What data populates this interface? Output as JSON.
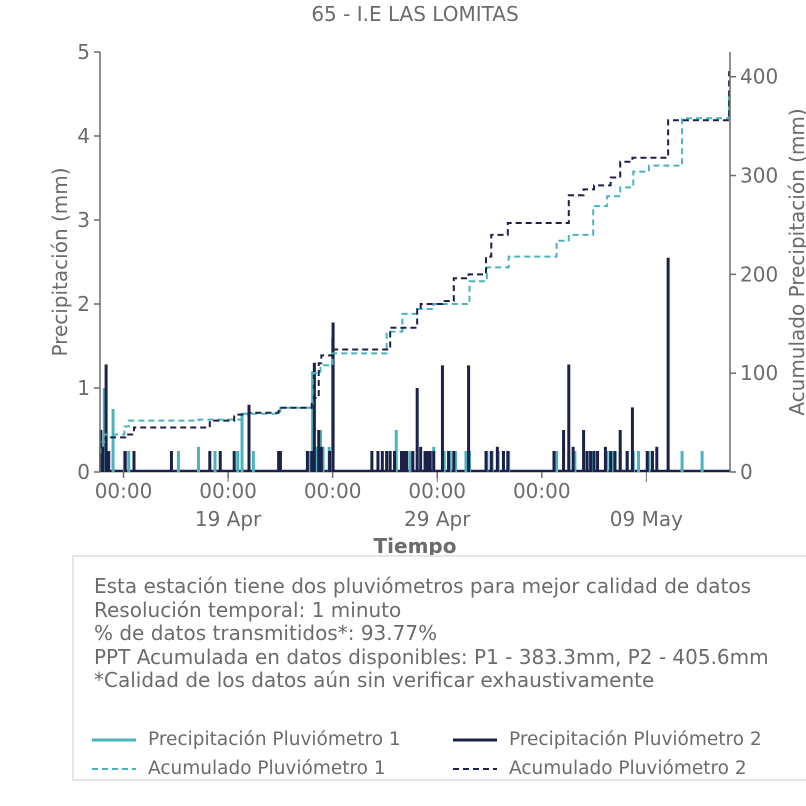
{
  "chart_data": {
    "type": "bar+line",
    "title": "65 - I.E LAS LOMITAS",
    "xlabel": "Tiempo",
    "ylabel": "Precipitación (mm)",
    "y2label": "Acumulado Precipitación (mm)",
    "ylim": [
      0,
      5
    ],
    "y2lim": [
      0,
      425
    ],
    "xlim": [
      "2024-04-12T21:00",
      "2024-05-13T00:00"
    ],
    "yticks": [
      "0",
      "1",
      "2",
      "3",
      "4",
      "5"
    ],
    "y2ticks": [
      "0",
      "100",
      "200",
      "300",
      "400"
    ],
    "xticks_major": [
      "00:00",
      "00:00",
      "00:00",
      "00:00",
      "00:00"
    ],
    "xticks_minor": [
      "19 Apr",
      "29 Apr",
      "09 May"
    ],
    "grid": false,
    "series": [
      {
        "name": "Precipitación Pluviómetro 1",
        "kind": "bar",
        "axis": "left",
        "x": [
          "2024-04-12T21:30",
          "2024-04-12T23:10",
          "2024-04-13T02:00",
          "2024-04-13T12:00",
          "2024-04-14T01:00",
          "2024-04-14T06:00",
          "2024-04-16T15:00",
          "2024-04-17T14:00",
          "2024-04-18T09:00",
          "2024-04-19T11:00",
          "2024-04-19T16:00",
          "2024-04-20T05:00",
          "2024-04-21T12:00",
          "2024-04-22T21:00",
          "2024-04-23T01:00",
          "2024-04-23T06:00",
          "2024-04-23T10:00",
          "2024-04-23T13:00",
          "2024-04-23T20:00",
          "2024-04-24T00:00",
          "2024-04-26T14:00",
          "2024-04-27T01:00",
          "2024-04-27T08:00",
          "2024-04-27T11:00",
          "2024-04-27T17:00",
          "2024-04-28T01:00",
          "2024-04-28T11:00",
          "2024-04-28T20:00",
          "2024-04-29T08:00",
          "2024-04-29T15:00",
          "2024-04-29T21:00",
          "2024-04-30T09:00",
          "2024-04-30T13:00",
          "2024-05-01T09:00",
          "2024-05-01T15:00",
          "2024-05-01T22:00",
          "2024-05-02T04:00",
          "2024-05-02T10:00",
          "2024-05-04T17:00",
          "2024-05-05T01:00",
          "2024-05-05T07:00",
          "2024-05-05T14:00",
          "2024-05-06T00:00",
          "2024-05-06T04:00",
          "2024-05-06T11:00",
          "2024-05-07T03:00",
          "2024-05-07T10:00",
          "2024-05-07T18:00",
          "2024-05-08T02:00",
          "2024-05-08T09:00",
          "2024-05-08T15:00",
          "2024-05-09T03:00",
          "2024-05-10T17:00",
          "2024-05-11T16:00"
        ],
        "values": [
          0.3,
          0.2,
          1.0,
          0.75,
          0.25,
          0.25,
          0.25,
          0.3,
          0.25,
          0.25,
          0.7,
          0.25,
          0.25,
          0.25,
          1.2,
          0.3,
          0.5,
          0.3,
          0.3,
          1.6,
          0.25,
          0.5,
          0.25,
          0.25,
          0.25,
          0.3,
          0.25,
          0.3,
          0.25,
          0.25,
          0.25,
          0.25,
          0.25,
          0.25,
          0.25,
          0.25,
          0.25,
          0.25,
          0.25,
          0.3,
          0.25,
          0.25,
          0.25,
          0.25,
          0.25,
          0.25,
          0.25,
          0.25,
          0.25,
          0.25,
          0.25,
          0.25,
          0.25,
          0.25
        ]
      },
      {
        "name": "Precipitación Pluviómetro 2",
        "kind": "bar",
        "axis": "left",
        "x": [
          "2024-04-12T22:00",
          "2024-04-13T00:00",
          "2024-04-13T04:00",
          "2024-04-13T07:00",
          "2024-04-14T02:00",
          "2024-04-14T12:00",
          "2024-04-16T07:00",
          "2024-04-18T03:00",
          "2024-04-18T15:00",
          "2024-04-19T07:00",
          "2024-04-20T00:00",
          "2024-04-21T10:00",
          "2024-04-21T12:00",
          "2024-04-22T19:00",
          "2024-04-23T00:00",
          "2024-04-23T03:00",
          "2024-04-23T08:00",
          "2024-04-23T11:00",
          "2024-04-23T20:30",
          "2024-04-24T00:30",
          "2024-04-25T21:00",
          "2024-04-26T04:00",
          "2024-04-26T09:00",
          "2024-04-26T14:00",
          "2024-04-26T18:00",
          "2024-04-26T23:00",
          "2024-04-27T07:00",
          "2024-04-27T10:00",
          "2024-04-27T13:00",
          "2024-04-27T20:00",
          "2024-04-28T01:00",
          "2024-04-28T05:00",
          "2024-04-28T10:00",
          "2024-04-28T13:00",
          "2024-04-28T16:00",
          "2024-04-28T20:00",
          "2024-04-29T06:00",
          "2024-04-29T13:00",
          "2024-04-29T19:00",
          "2024-04-30T12:00",
          "2024-05-01T08:00",
          "2024-05-01T14:00",
          "2024-05-01T21:00",
          "2024-05-02T04:00",
          "2024-05-02T09:00",
          "2024-05-04T14:00",
          "2024-05-05T01:00",
          "2024-05-05T07:00",
          "2024-05-05T12:00",
          "2024-05-06T00:00",
          "2024-05-06T04:00",
          "2024-05-06T08:00",
          "2024-05-06T12:00",
          "2024-05-06T16:00",
          "2024-05-07T01:00",
          "2024-05-07T07:00",
          "2024-05-07T12:00",
          "2024-05-07T18:00",
          "2024-05-08T02:00",
          "2024-05-08T08:00",
          "2024-05-09T01:00",
          "2024-05-09T07:00",
          "2024-05-09T12:00",
          "2024-05-10T01:00"
        ],
        "values": [
          0.5,
          0.3,
          1.28,
          0.25,
          0.25,
          0.25,
          0.25,
          0.25,
          0.25,
          0.25,
          0.8,
          0.25,
          0.25,
          0.25,
          0.25,
          1.3,
          0.5,
          0.3,
          0.25,
          1.78,
          0.25,
          0.25,
          0.25,
          0.25,
          0.25,
          0.25,
          0.25,
          0.25,
          0.25,
          0.25,
          1.0,
          0.3,
          0.25,
          0.25,
          0.25,
          0.25,
          1.27,
          0.25,
          0.25,
          1.27,
          0.25,
          0.25,
          0.3,
          0.25,
          0.25,
          0.25,
          0.5,
          1.28,
          0.3,
          0.5,
          0.25,
          0.25,
          0.25,
          0.25,
          0.3,
          0.25,
          0.25,
          0.5,
          0.25,
          0.77,
          0.25,
          0.25,
          0.3,
          2.55
        ]
      },
      {
        "name": "Acumulado Pluviómetro 1",
        "kind": "line",
        "axis": "right",
        "x": [
          "2024-04-12T21:00",
          "2024-04-12T21:30",
          "2024-04-13T02:00",
          "2024-04-13T12:00",
          "2024-04-14T01:00",
          "2024-04-14T06:00",
          "2024-04-16T15:00",
          "2024-04-17T14:00",
          "2024-04-19T11:00",
          "2024-04-19T16:00",
          "2024-04-21T12:00",
          "2024-04-22T21:00",
          "2024-04-23T01:00",
          "2024-04-23T10:00",
          "2024-04-24T00:00",
          "2024-04-26T14:00",
          "2024-04-27T01:00",
          "2024-04-27T08:00",
          "2024-04-28T01:00",
          "2024-04-28T20:00",
          "2024-04-30T13:00",
          "2024-05-01T09:00",
          "2024-05-02T10:00",
          "2024-05-04T17:00",
          "2024-05-05T07:00",
          "2024-05-06T00:00",
          "2024-05-06T11:00",
          "2024-05-07T03:00",
          "2024-05-07T18:00",
          "2024-05-08T09:00",
          "2024-05-09T03:00",
          "2024-05-10T17:00",
          "2024-05-12T23:00"
        ],
        "values": [
          20,
          30,
          38,
          38,
          46,
          52,
          52,
          53,
          53,
          59,
          65,
          65,
          100,
          108,
          120,
          142,
          142,
          160,
          165,
          170,
          193,
          207,
          218,
          234,
          240,
          240,
          269,
          279,
          288,
          304,
          310,
          358,
          383.3
        ]
      },
      {
        "name": "Acumulado Pluviómetro 2",
        "kind": "line",
        "axis": "right",
        "x": [
          "2024-04-12T21:00",
          "2024-04-12T22:00",
          "2024-04-13T04:00",
          "2024-04-13T07:00",
          "2024-04-14T02:00",
          "2024-04-14T12:00",
          "2024-04-18T03:00",
          "2024-04-19T07:00",
          "2024-04-20T00:00",
          "2024-04-21T10:00",
          "2024-04-23T00:00",
          "2024-04-23T03:00",
          "2024-04-23T08:00",
          "2024-04-23T11:00",
          "2024-04-24T00:30",
          "2024-04-26T18:00",
          "2024-04-28T01:00",
          "2024-04-28T05:00",
          "2024-04-29T06:00",
          "2024-04-29T19:00",
          "2024-04-30T12:00",
          "2024-05-01T08:00",
          "2024-05-01T14:00",
          "2024-05-02T09:00",
          "2024-05-04T14:00",
          "2024-05-05T07:00",
          "2024-05-06T00:00",
          "2024-05-06T12:00",
          "2024-05-07T07:00",
          "2024-05-07T18:00",
          "2024-05-08T08:00",
          "2024-05-10T01:00",
          "2024-05-12T23:00"
        ],
        "values": [
          25,
          30,
          35,
          35,
          38,
          45,
          52,
          58,
          60,
          65,
          70,
          75,
          110,
          118,
          124,
          146,
          166,
          170,
          173,
          196,
          200,
          218,
          240,
          252,
          252,
          280,
          286,
          290,
          298,
          314,
          318,
          356,
          405.6
        ]
      }
    ]
  },
  "info": {
    "lines": [
      "Esta estación tiene dos pluviómetros para mejor calidad de datos",
      "Resolución temporal: 1 minuto",
      "% de datos transmitidos*: 93.77%",
      "PPT Acumulada en datos disponibles: P1 - 383.3mm, P2 - 405.6mm",
      "*Calidad de los datos aún sin verificar exhaustivamente"
    ]
  },
  "legend": {
    "items": [
      {
        "label": "Precipitación Pluviómetro 1",
        "color": "#4bb3bd",
        "style": "solid"
      },
      {
        "label": "Precipitación Pluviómetro 2",
        "color": "#1b2149",
        "style": "solid"
      },
      {
        "label": "Acumulado Pluviómetro 1",
        "color": "#4bb3bd",
        "style": "dashed"
      },
      {
        "label": "Acumulado Pluviómetro 2",
        "color": "#1b2149",
        "style": "dashed"
      }
    ]
  },
  "colors": {
    "p1": "#4bb3bd",
    "p2": "#1b2149",
    "axis": "#6b6b6b"
  }
}
